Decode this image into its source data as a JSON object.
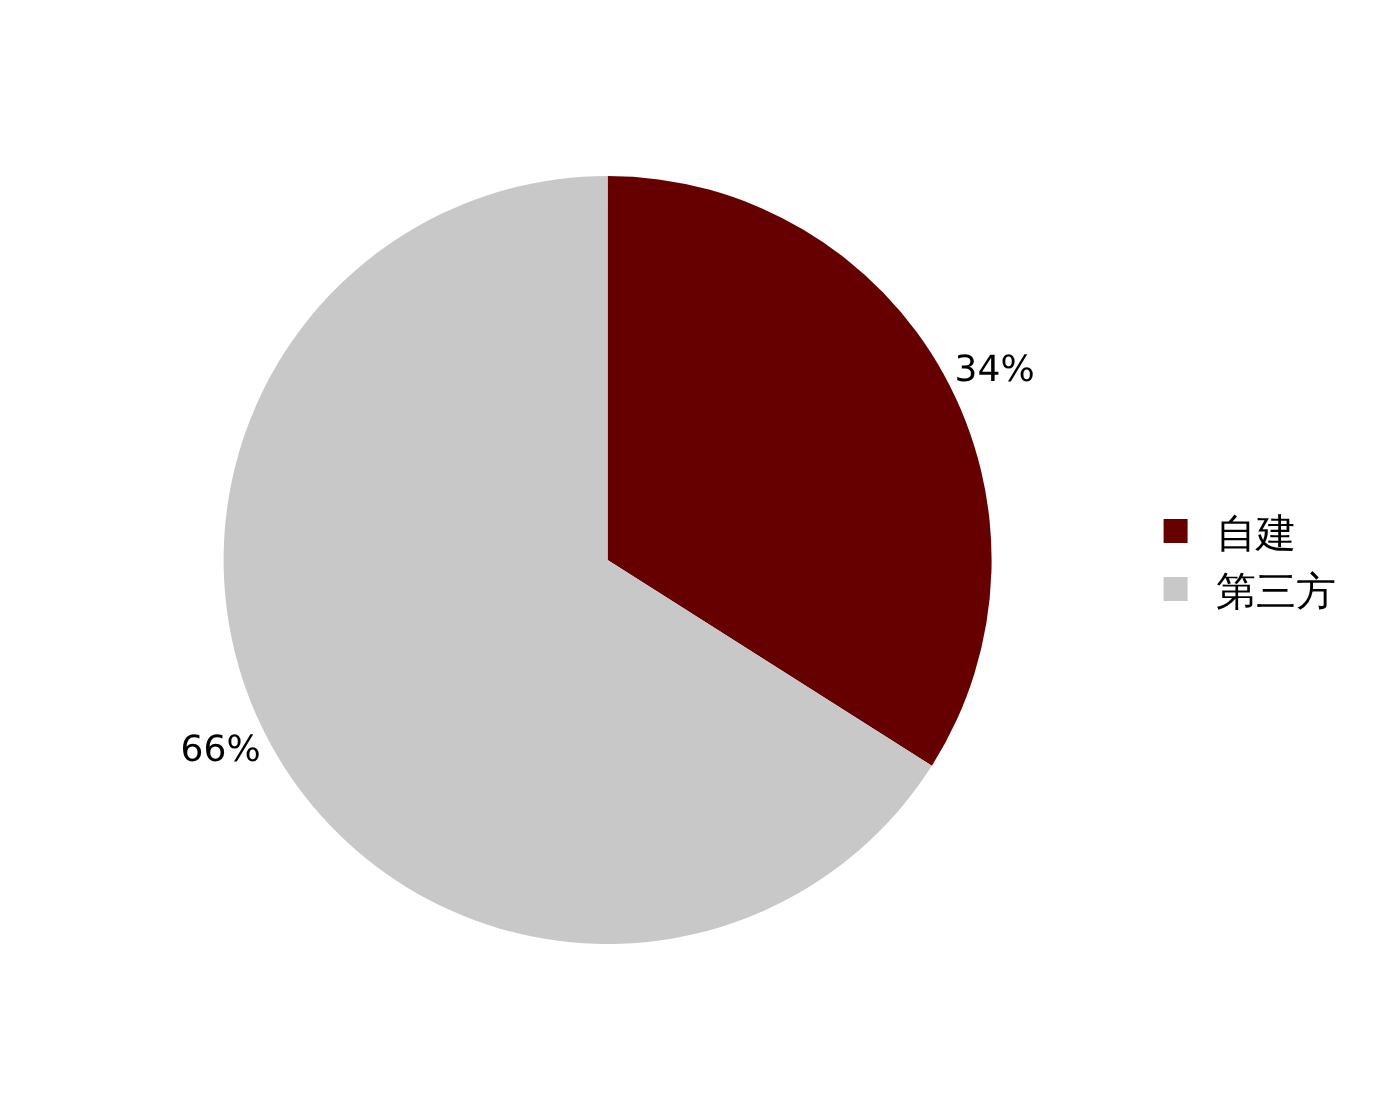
{
  "chart_data": {
    "type": "pie",
    "categories": [
      "自建",
      "第三方"
    ],
    "values": [
      34,
      66
    ],
    "colors": [
      "#660000",
      "#c8c8c8"
    ],
    "value_labels": [
      "34%",
      "66%"
    ],
    "legend": "right"
  }
}
